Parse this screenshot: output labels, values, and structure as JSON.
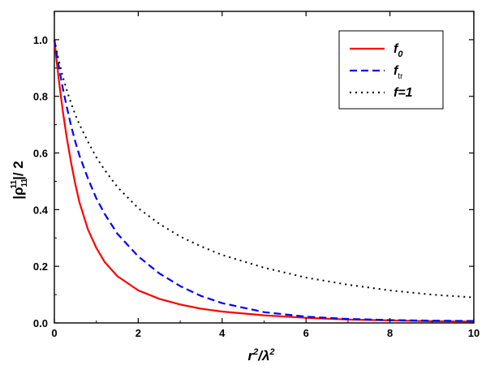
{
  "chart_data": {
    "type": "line",
    "xlabel": {
      "base": "r",
      "sup1": "2",
      "mid": "/λ",
      "sup2": "2"
    },
    "ylabel": {
      "pre": "|ρ",
      "sub": "11",
      "sup": "11",
      "post": "|/ 2"
    },
    "xlim": [
      0,
      10
    ],
    "ylim": [
      0,
      1.1
    ],
    "xticks": [
      "0",
      "2",
      "4",
      "6",
      "8",
      "10"
    ],
    "yticks": [
      "0.0",
      "0.2",
      "0.4",
      "0.6",
      "0.8",
      "1.0"
    ],
    "legend_position": "top-right",
    "grid": false,
    "series": [
      {
        "name": "f0",
        "legend_label": {
          "main": "f",
          "sub": "0"
        },
        "color": "#ff0000",
        "style": "solid",
        "x": [
          0,
          0.05,
          0.1,
          0.2,
          0.3,
          0.4,
          0.5,
          0.6,
          0.8,
          1.0,
          1.2,
          1.5,
          2.0,
          2.5,
          3.0,
          3.5,
          4.0,
          5.0,
          6.0,
          7.0,
          8.0,
          9.0,
          10.0
        ],
        "values": [
          1.0,
          0.93,
          0.865,
          0.75,
          0.65,
          0.565,
          0.49,
          0.425,
          0.33,
          0.265,
          0.215,
          0.165,
          0.115,
          0.085,
          0.065,
          0.05,
          0.04,
          0.027,
          0.018,
          0.012,
          0.009,
          0.006,
          0.005
        ]
      },
      {
        "name": "ftr",
        "legend_label": {
          "main": "f",
          "sub": "tr"
        },
        "color": "#0000ff",
        "style": "dashed",
        "x": [
          0,
          0.05,
          0.1,
          0.2,
          0.3,
          0.4,
          0.5,
          0.6,
          0.8,
          1.0,
          1.2,
          1.5,
          2.0,
          2.5,
          3.0,
          3.5,
          4.0,
          5.0,
          6.0,
          7.0,
          8.0,
          9.0,
          10.0
        ],
        "values": [
          1.0,
          0.955,
          0.91,
          0.83,
          0.76,
          0.695,
          0.64,
          0.59,
          0.51,
          0.44,
          0.385,
          0.315,
          0.235,
          0.175,
          0.13,
          0.095,
          0.07,
          0.038,
          0.022,
          0.014,
          0.01,
          0.008,
          0.007
        ]
      },
      {
        "name": "f=1",
        "legend_label": {
          "main": "f=1",
          "sub": ""
        },
        "color": "#000000",
        "style": "dotted",
        "x": [
          0,
          0.1,
          0.2,
          0.3,
          0.4,
          0.5,
          0.6,
          0.8,
          1.0,
          1.2,
          1.5,
          2.0,
          2.5,
          3.0,
          3.5,
          4.0,
          5.0,
          6.0,
          7.0,
          8.0,
          9.0,
          10.0
        ],
        "values": [
          1.0,
          0.93,
          0.87,
          0.82,
          0.775,
          0.735,
          0.7,
          0.64,
          0.585,
          0.54,
          0.48,
          0.405,
          0.35,
          0.305,
          0.27,
          0.24,
          0.195,
          0.16,
          0.135,
          0.115,
          0.1,
          0.09
        ]
      }
    ]
  }
}
